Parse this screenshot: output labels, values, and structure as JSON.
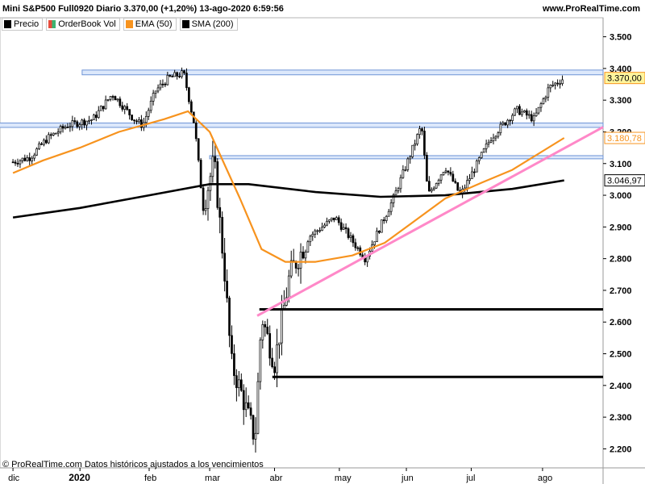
{
  "header": {
    "title": "Mini S&P500 Full0920 Diario 3.370,00 (+1,20%) 13-ago-2020 6:59:56",
    "website": "www.ProRealTime.com"
  },
  "legend": [
    {
      "label": "Precio",
      "color": "#000000"
    },
    {
      "label": "OrderBook Vol",
      "color": "#3cb371"
    },
    {
      "label": "EMA (50)",
      "color": "#f7931e"
    },
    {
      "label": "SMA (200)",
      "color": "#000000"
    }
  ],
  "footer": {
    "copyright": "© ProRealTime.com Datos históricos ajustados a los vencimientos"
  },
  "chart_data": {
    "type": "line",
    "title": "Mini S&P500 Full0920 Diario",
    "ylim": [
      2140,
      3560
    ],
    "y_ticks": [
      "3.500",
      "3.400",
      "3.300",
      "3.200",
      "3.100",
      "3.000",
      "2.900",
      "2.800",
      "2.700",
      "2.600",
      "2.500",
      "2.400",
      "2.300",
      "2.200"
    ],
    "y_tick_values": [
      3500,
      3400,
      3300,
      3200,
      3100,
      3000,
      2900,
      2800,
      2700,
      2600,
      2500,
      2400,
      2300,
      2200
    ],
    "x_ticks": [
      "dic",
      "2020",
      "feb",
      "mar",
      "abr",
      "may",
      "jun",
      "jul",
      "ago"
    ],
    "series": [
      {
        "name": "Precio",
        "color": "#000000",
        "points": [
          [
            "2019-12-02",
            3105
          ],
          [
            "2019-12-10",
            3120
          ],
          [
            "2019-12-18",
            3180
          ],
          [
            "2019-12-27",
            3220
          ],
          [
            "2020-01-08",
            3240
          ],
          [
            "2020-01-17",
            3320
          ],
          [
            "2020-01-27",
            3240
          ],
          [
            "2020-01-31",
            3220
          ],
          [
            "2020-02-06",
            3330
          ],
          [
            "2020-02-12",
            3370
          ],
          [
            "2020-02-19",
            3385
          ],
          [
            "2020-02-24",
            3220
          ],
          [
            "2020-02-28",
            2960
          ],
          [
            "2020-03-04",
            3110
          ],
          [
            "2020-03-09",
            2750
          ],
          [
            "2020-03-12",
            2470
          ],
          [
            "2020-03-16",
            2390
          ],
          [
            "2020-03-20",
            2300
          ],
          [
            "2020-03-23",
            2230
          ],
          [
            "2020-03-26",
            2620
          ],
          [
            "2020-04-01",
            2470
          ],
          [
            "2020-04-08",
            2750
          ],
          [
            "2020-04-17",
            2870
          ],
          [
            "2020-04-29",
            2930
          ],
          [
            "2020-05-13",
            2800
          ],
          [
            "2020-05-26",
            2990
          ],
          [
            "2020-06-08",
            3220
          ],
          [
            "2020-06-11",
            3000
          ],
          [
            "2020-06-19",
            3090
          ],
          [
            "2020-06-26",
            3000
          ],
          [
            "2020-07-10",
            3180
          ],
          [
            "2020-07-22",
            3270
          ],
          [
            "2020-07-30",
            3240
          ],
          [
            "2020-08-06",
            3340
          ],
          [
            "2020-08-13",
            3370
          ]
        ]
      },
      {
        "name": "EMA (50)",
        "color": "#f7931e",
        "points": [
          [
            "2019-12-02",
            3070
          ],
          [
            "2019-12-16",
            3110
          ],
          [
            "2020-01-02",
            3150
          ],
          [
            "2020-01-20",
            3200
          ],
          [
            "2020-02-10",
            3240
          ],
          [
            "2020-02-21",
            3265
          ],
          [
            "2020-03-02",
            3200
          ],
          [
            "2020-03-16",
            2990
          ],
          [
            "2020-03-26",
            2830
          ],
          [
            "2020-04-06",
            2790
          ],
          [
            "2020-04-20",
            2790
          ],
          [
            "2020-05-07",
            2810
          ],
          [
            "2020-05-22",
            2850
          ],
          [
            "2020-06-05",
            2920
          ],
          [
            "2020-06-19",
            2990
          ],
          [
            "2020-07-06",
            3040
          ],
          [
            "2020-07-20",
            3080
          ],
          [
            "2020-08-13",
            3180.78
          ]
        ]
      },
      {
        "name": "SMA (200)",
        "color": "#000000",
        "points": [
          [
            "2019-12-02",
            2930
          ],
          [
            "2020-01-02",
            2960
          ],
          [
            "2020-02-03",
            3000
          ],
          [
            "2020-03-02",
            3035
          ],
          [
            "2020-03-20",
            3035
          ],
          [
            "2020-04-20",
            3010
          ],
          [
            "2020-05-20",
            2995
          ],
          [
            "2020-06-19",
            3000
          ],
          [
            "2020-07-20",
            3020
          ],
          [
            "2020-08-13",
            3046.97
          ]
        ]
      }
    ],
    "last_values": [
      {
        "label": "3.370,00",
        "value": 3370,
        "color": "#f7931e",
        "bg": "#fff59d"
      },
      {
        "label": "3.180,78",
        "value": 3180.78,
        "color": "#f7931e",
        "bg": "#ffffff"
      },
      {
        "label": "3.046,97",
        "value": 3046.97,
        "color": "#000000",
        "bg": "#ffffff"
      }
    ],
    "annotations": {
      "support_lines": [
        {
          "value": 2640,
          "from": "2020-03-25",
          "to": "2020-08-31",
          "color": "#000000"
        },
        {
          "value": 2427,
          "from": "2020-03-31",
          "to": "2020-08-31",
          "color": "#000000"
        }
      ],
      "resistance_zones": [
        {
          "low": 3380,
          "high": 3395,
          "from": "2020-01-03",
          "to": "2020-08-31"
        },
        {
          "low": 3214,
          "high": 3228,
          "from": "2019-11-25",
          "to": "2020-08-31"
        },
        {
          "low": 3115,
          "high": 3125,
          "from": "2020-03-02",
          "to": "2020-08-31"
        }
      ],
      "trendline": {
        "from": [
          "2020-03-24",
          2620
        ],
        "to": [
          "2020-08-31",
          3215
        ],
        "color": "#ff88c8"
      }
    }
  }
}
